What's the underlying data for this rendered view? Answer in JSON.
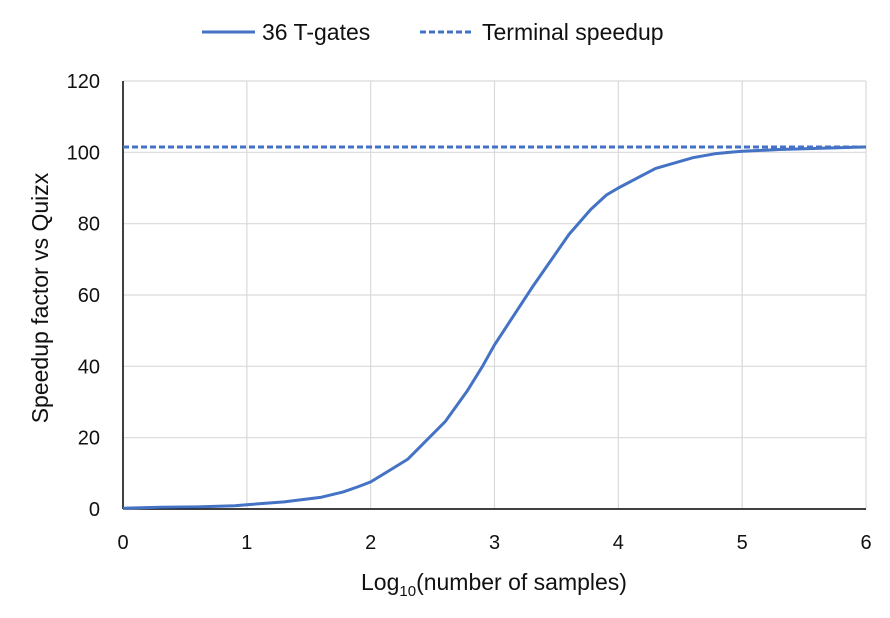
{
  "chart_data": {
    "type": "line",
    "title": "",
    "xlabel": {
      "prefix": "Log",
      "subscript": "10",
      "suffix": "(number of samples)"
    },
    "ylabel": "Speedup factor vs Quizx",
    "xlim": [
      0,
      6
    ],
    "ylim": [
      0,
      120
    ],
    "x_ticks": [
      0,
      1,
      2,
      3,
      4,
      5,
      6
    ],
    "y_ticks": [
      0,
      20,
      40,
      60,
      80,
      100,
      120
    ],
    "grid": true,
    "legend_position": "top-center",
    "series": [
      {
        "name": "36 T-gates",
        "style": "solid",
        "color": "#4472C4",
        "x": [
          0,
          0.301,
          0.602,
          0.903,
          1.0,
          1.301,
          1.602,
          1.778,
          1.903,
          2.0,
          2.301,
          2.602,
          2.778,
          2.903,
          3.0,
          3.301,
          3.602,
          3.778,
          3.903,
          4.0,
          4.301,
          4.602,
          4.778,
          4.903,
          5.0,
          5.301,
          5.602,
          5.778,
          5.903,
          6.0
        ],
        "y": [
          0.2,
          0.5,
          0.6,
          0.9,
          1.2,
          2.0,
          3.3,
          4.8,
          6.3,
          7.6,
          14,
          24.5,
          33,
          40,
          46,
          62,
          77,
          84,
          88,
          90,
          95.5,
          98.5,
          99.6,
          100,
          100.3,
          100.8,
          101.1,
          101.3,
          101.4,
          101.5
        ]
      },
      {
        "name": "Terminal speedup",
        "style": "dashed",
        "color": "#4472C4",
        "x": [
          0,
          6
        ],
        "y": [
          101.5,
          101.5
        ]
      }
    ]
  }
}
